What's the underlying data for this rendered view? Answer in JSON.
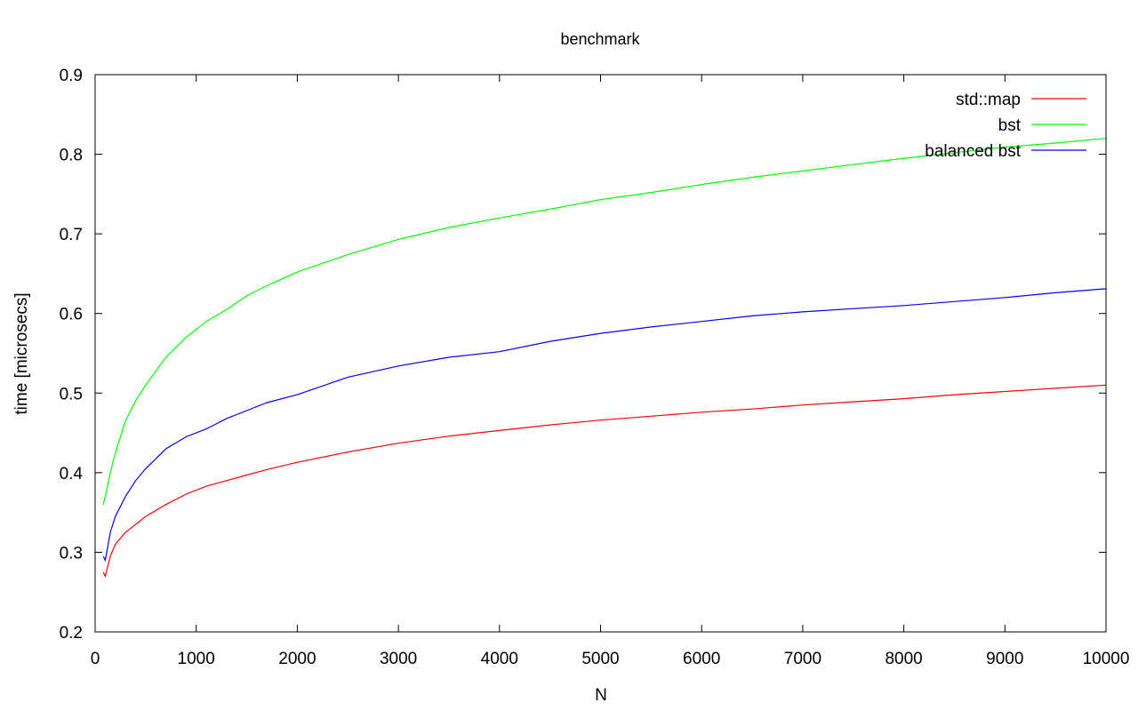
{
  "chart_data": {
    "type": "line",
    "title": "benchmark",
    "xlabel": "N",
    "ylabel": "time [microsecs]",
    "xlim": [
      0,
      10000
    ],
    "ylim": [
      0.2,
      0.9
    ],
    "xticks": [
      0,
      1000,
      2000,
      3000,
      4000,
      5000,
      6000,
      7000,
      8000,
      9000,
      10000
    ],
    "yticks": [
      0.2,
      0.3,
      0.4,
      0.5,
      0.6,
      0.7,
      0.8,
      0.9
    ],
    "ytick_labels": [
      "0.2",
      "0.3",
      "0.4",
      "0.5",
      "0.6",
      "0.7",
      "0.8",
      "0.9"
    ],
    "grid": false,
    "legend_position": "top-right",
    "series": [
      {
        "name": "std::map",
        "color": "#ff0000",
        "x": [
          80,
          100,
          150,
          200,
          300,
          400,
          500,
          700,
          900,
          1100,
          1300,
          1500,
          1700,
          2000,
          2500,
          3000,
          3500,
          4000,
          4500,
          5000,
          5500,
          6000,
          6500,
          7000,
          7500,
          8000,
          8500,
          9000,
          9500,
          10000
        ],
        "y": [
          0.275,
          0.27,
          0.295,
          0.31,
          0.325,
          0.335,
          0.345,
          0.36,
          0.373,
          0.383,
          0.39,
          0.397,
          0.404,
          0.413,
          0.426,
          0.437,
          0.446,
          0.453,
          0.46,
          0.466,
          0.471,
          0.476,
          0.48,
          0.485,
          0.489,
          0.493,
          0.498,
          0.502,
          0.506,
          0.51
        ]
      },
      {
        "name": "bst",
        "color": "#00ff00",
        "x": [
          80,
          100,
          150,
          200,
          300,
          400,
          500,
          700,
          900,
          1100,
          1300,
          1500,
          1700,
          2000,
          2500,
          3000,
          3500,
          4000,
          4500,
          5000,
          5500,
          6000,
          6500,
          7000,
          7500,
          8000,
          8500,
          9000,
          9500,
          10000
        ],
        "y": [
          0.36,
          0.37,
          0.4,
          0.425,
          0.465,
          0.49,
          0.51,
          0.545,
          0.57,
          0.59,
          0.605,
          0.622,
          0.635,
          0.652,
          0.674,
          0.693,
          0.708,
          0.72,
          0.731,
          0.743,
          0.752,
          0.762,
          0.771,
          0.779,
          0.787,
          0.795,
          0.802,
          0.809,
          0.814,
          0.82
        ]
      },
      {
        "name": "balanced bst",
        "color": "#0000ff",
        "x": [
          80,
          100,
          150,
          200,
          300,
          400,
          500,
          700,
          900,
          1100,
          1300,
          1500,
          1700,
          2000,
          2500,
          3000,
          3500,
          4000,
          4500,
          5000,
          5500,
          6000,
          6500,
          7000,
          7500,
          8000,
          8500,
          9000,
          9500,
          10000
        ],
        "y": [
          0.295,
          0.29,
          0.325,
          0.345,
          0.37,
          0.39,
          0.405,
          0.43,
          0.445,
          0.455,
          0.468,
          0.478,
          0.488,
          0.498,
          0.52,
          0.534,
          0.545,
          0.552,
          0.565,
          0.575,
          0.583,
          0.59,
          0.597,
          0.602,
          0.606,
          0.61,
          0.615,
          0.62,
          0.626,
          0.631
        ]
      }
    ]
  }
}
